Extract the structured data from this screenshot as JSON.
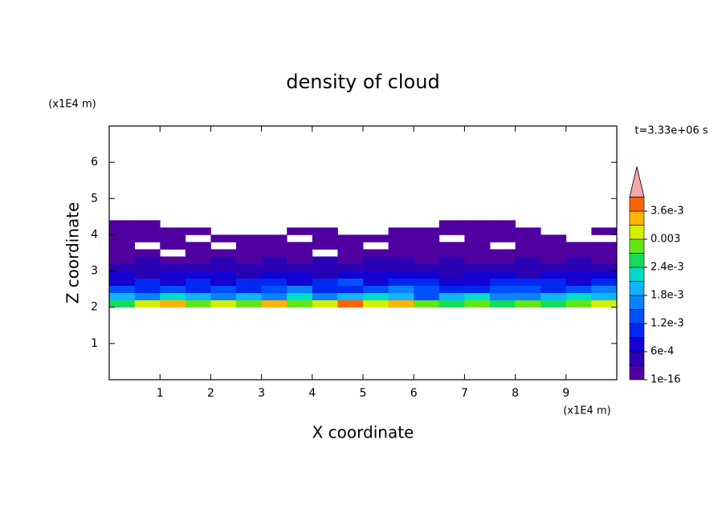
{
  "chart_data": {
    "type": "contour",
    "title": "density of cloud",
    "xlabel": "X coordinate",
    "ylabel": "Z coordinate",
    "xunit": "(x1E4 m)",
    "yunit": "(x1E4 m)",
    "time_label": "t=3.33e+06 s",
    "xlim": [
      0,
      10
    ],
    "ylim": [
      0,
      7
    ],
    "xticks": [
      1,
      2,
      3,
      4,
      5,
      6,
      7,
      8,
      9
    ],
    "yticks": [
      1,
      2,
      3,
      4,
      5,
      6
    ],
    "x": [
      0.25,
      0.75,
      1.25,
      1.75,
      2.25,
      2.75,
      3.25,
      3.75,
      4.25,
      4.75,
      5.25,
      5.75,
      6.25,
      6.75,
      7.25,
      7.75,
      8.25,
      8.75,
      9.25,
      9.75
    ],
    "y": [
      2.1,
      2.3,
      2.5,
      2.7,
      2.9,
      3.1,
      3.3,
      3.5,
      3.7,
      3.9,
      4.1,
      4.3
    ],
    "z": [
      [
        0.0026,
        0.003,
        0.0033,
        0.0028,
        0.0031,
        0.0027,
        0.0034,
        0.0029,
        0.0032,
        0.0036,
        0.003,
        0.0033,
        0.0028,
        0.0026,
        0.0029,
        0.0024,
        0.0027,
        0.0025,
        0.0028,
        0.003
      ],
      [
        0.0019,
        0.0016,
        0.0021,
        0.0018,
        0.0015,
        0.002,
        0.0017,
        0.0022,
        0.0016,
        0.0019,
        0.0021,
        0.0018,
        0.0014,
        0.002,
        0.0023,
        0.0017,
        0.0016,
        0.0019,
        0.0021,
        0.0018
      ],
      [
        0.0012,
        0.001,
        0.0013,
        0.0011,
        0.0014,
        0.0009,
        0.0012,
        0.0015,
        0.0011,
        0.001,
        0.0013,
        0.0016,
        0.0012,
        0.0009,
        0.0011,
        0.0014,
        0.0012,
        0.001,
        0.0013,
        0.0015
      ],
      [
        0.0008,
        0.0009,
        0.0007,
        0.001,
        0.0008,
        0.0011,
        0.0009,
        0.0007,
        0.001,
        0.0012,
        0.0008,
        0.0009,
        0.0011,
        0.0008,
        0.0007,
        0.001,
        0.0009,
        0.0011,
        0.0008,
        0.0009
      ],
      [
        0.0006,
        0.0005,
        0.0007,
        0.0006,
        0.0008,
        0.0005,
        0.0006,
        0.0007,
        0.0005,
        0.0006,
        0.0008,
        0.0007,
        0.0006,
        0.0005,
        0.0007,
        0.0006,
        0.0005,
        0.0006,
        0.0007,
        0.0008
      ],
      [
        0.0004,
        0.0003,
        0.0005,
        0.0004,
        0.0003,
        0.0004,
        0.0005,
        0.0003,
        0.0004,
        0.0005,
        0.0004,
        0.0003,
        0.0004,
        0.0005,
        0.0003,
        0.0004,
        0.0004,
        0.0005,
        0.0003,
        0.0004
      ],
      [
        0.0002,
        0.0003,
        0.0002,
        0.0001,
        0.0003,
        0.0002,
        0.0004,
        0.0002,
        0.0003,
        0.0002,
        0.0003,
        0.0004,
        0.0002,
        0.0003,
        0.0002,
        0.0001,
        0.0003,
        0.0002,
        0.0003,
        0.0002
      ],
      [
        0.0001,
        0.0002,
        null,
        0.0001,
        0.0002,
        0.0001,
        0.0002,
        0.0001,
        null,
        0.0001,
        0.0002,
        0.0001,
        0.0002,
        0.0001,
        0.0001,
        0.0002,
        0.0001,
        0.0002,
        0.0001,
        0.0001
      ],
      [
        0.0001,
        null,
        0.0001,
        0.0001,
        null,
        0.0001,
        0.0001,
        0.0001,
        0.0001,
        0.0001,
        null,
        0.0001,
        0.0001,
        0.0001,
        0.0001,
        null,
        0.0001,
        0.0001,
        0.0001,
        0.0001
      ],
      [
        0.0001,
        0.0001,
        0.0001,
        null,
        0.0001,
        0.0001,
        0.0001,
        null,
        0.0001,
        0.0001,
        0.0001,
        0.0001,
        0.0001,
        null,
        0.0001,
        0.0001,
        0.0001,
        0.0001,
        null,
        null
      ],
      [
        0.0001,
        0.0001,
        0.0001,
        0.0001,
        null,
        null,
        null,
        0.0001,
        0.0001,
        null,
        null,
        0.0001,
        0.0001,
        0.0001,
        0.0001,
        0.0001,
        0.0001,
        null,
        null,
        0.0001
      ],
      [
        0.0001,
        0.0001,
        null,
        null,
        null,
        null,
        null,
        null,
        null,
        null,
        null,
        null,
        null,
        0.0001,
        0.0001,
        0.0001,
        null,
        null,
        null,
        null
      ]
    ],
    "levels": [
      1e-16,
      0.0003,
      0.0006,
      0.0009,
      0.0012,
      0.0015,
      0.0018,
      0.0021,
      0.0024,
      0.0027,
      0.003,
      0.0033,
      0.0036,
      0.0039
    ],
    "colors": [
      "#5000a0",
      "#2a00b4",
      "#1400d2",
      "#0028f0",
      "#0050ff",
      "#0a82ff",
      "#10b4ff",
      "#00dcc8",
      "#14dc5a",
      "#64e614",
      "#d2f000",
      "#ffb400",
      "#ff6400"
    ],
    "extend_color": "#f4a8a8",
    "colorbar_ticks": [
      {
        "value": 1e-16,
        "label": "1e-16"
      },
      {
        "value": 0.0006,
        "label": "6e-4"
      },
      {
        "value": 0.0012,
        "label": "1.2e-3"
      },
      {
        "value": 0.0018,
        "label": "1.8e-3"
      },
      {
        "value": 0.0024,
        "label": "2.4e-3"
      },
      0.003,
      {
        "value": 0.0036,
        "label": "3.6e-3"
      }
    ]
  }
}
